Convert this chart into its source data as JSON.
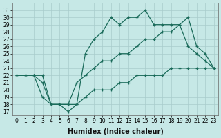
{
  "xlabel": "Humidex (Indice chaleur)",
  "bg_color": "#c6e8e6",
  "line_color": "#1a6b5a",
  "grid_color": "#a8cccc",
  "xlim": [
    -0.5,
    23.5
  ],
  "ylim": [
    16.5,
    32.0
  ],
  "yticks": [
    17,
    18,
    19,
    20,
    21,
    22,
    23,
    24,
    25,
    26,
    27,
    28,
    29,
    30,
    31
  ],
  "xticks": [
    0,
    1,
    2,
    3,
    4,
    5,
    6,
    7,
    8,
    9,
    10,
    11,
    12,
    13,
    14,
    15,
    16,
    17,
    18,
    19,
    20,
    21,
    22,
    23
  ],
  "line_top_x": [
    1,
    2,
    3,
    4,
    5,
    6,
    7,
    8,
    9,
    10,
    11,
    12,
    13,
    14,
    15,
    16,
    17,
    18,
    19,
    20,
    21,
    22,
    23
  ],
  "line_top_y": [
    22,
    22,
    22,
    18,
    18,
    18,
    18,
    25,
    27,
    28,
    30,
    29,
    30,
    30,
    31,
    29,
    29,
    29,
    29,
    30,
    26,
    25,
    23
  ],
  "line_mid_x": [
    0,
    1,
    2,
    3,
    4,
    5,
    6,
    7,
    8,
    9,
    10,
    11,
    12,
    13,
    14,
    15,
    16,
    17,
    18,
    19,
    20,
    21,
    22,
    23
  ],
  "line_mid_y": [
    22,
    22,
    22,
    21,
    18,
    18,
    18,
    21,
    22,
    23,
    24,
    24,
    25,
    25,
    26,
    27,
    27,
    28,
    28,
    29,
    26,
    25,
    24,
    23
  ],
  "line_bot_x": [
    0,
    1,
    2,
    3,
    4,
    5,
    6,
    7,
    8,
    9,
    10,
    11,
    12,
    13,
    14,
    15,
    16,
    17,
    18,
    19,
    20,
    21,
    22,
    23
  ],
  "line_bot_y": [
    22,
    22,
    22,
    19,
    18,
    18,
    17,
    18,
    19,
    20,
    20,
    20,
    21,
    21,
    22,
    22,
    22,
    22,
    23,
    23,
    23,
    23,
    23,
    23
  ]
}
